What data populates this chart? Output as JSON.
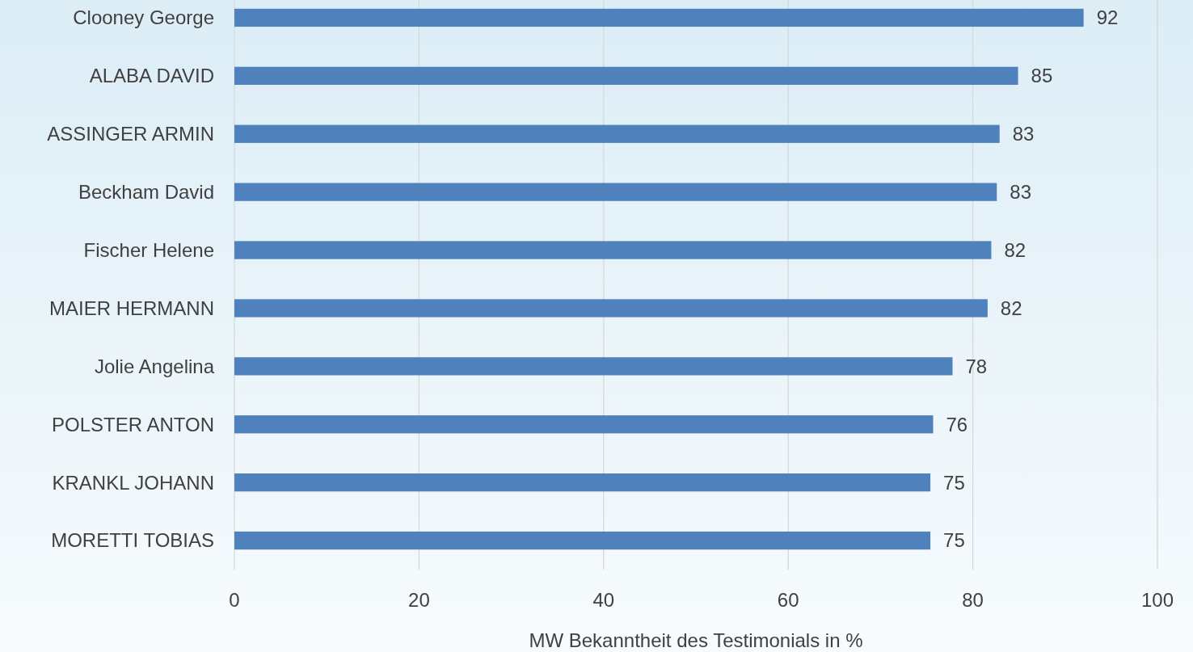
{
  "chart_data": {
    "type": "bar",
    "orientation": "horizontal",
    "xlabel": "MW Bekanntheit des Testimonials in %",
    "categories": [
      "Clooney George",
      "ALABA DAVID",
      "ASSINGER ARMIN",
      "Beckham David",
      "Fischer Helene",
      "MAIER HERMANN",
      "Jolie Angelina",
      "POLSTER ANTON",
      "KRANKL JOHANN",
      "MORETTI TOBIAS"
    ],
    "values": [
      92.0,
      84.9,
      82.9,
      82.6,
      82.0,
      81.6,
      77.8,
      75.7,
      75.4,
      75.4
    ],
    "value_labels": [
      "92",
      "85",
      "83",
      "83",
      "82",
      "82",
      "78",
      "76",
      "75",
      "75"
    ],
    "color": "#4f81bd",
    "xlim": [
      0,
      100
    ],
    "xticks": [
      0,
      20,
      40,
      60,
      80,
      100
    ],
    "grid": "x"
  }
}
